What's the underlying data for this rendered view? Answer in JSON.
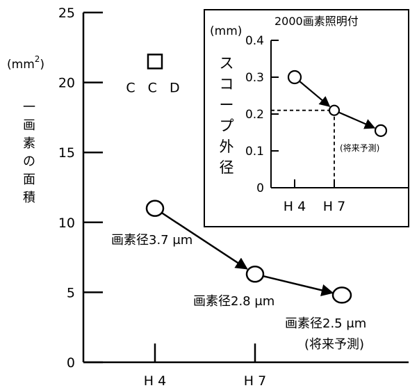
{
  "chart_data": [
    {
      "type": "line",
      "ylabel_unit": "(mm²)",
      "ylabel_unit_base": "(mm",
      "ylabel_unit_sup": "2",
      "ylabel_unit_close": ")",
      "ylabel_vertical": [
        "一",
        "画",
        "素",
        "の",
        "面",
        "積"
      ],
      "yticks": [
        0,
        5,
        10,
        15,
        20,
        25
      ],
      "ylim": [
        0,
        25
      ],
      "categories": [
        "H 4",
        "H 7"
      ],
      "series": [
        {
          "points": [
            {
              "x": "H 4",
              "y": 11.0,
              "label": "画素径3.7 μm"
            },
            {
              "x": "H 7",
              "y": 6.3,
              "label": "画素径2.8 μm"
            },
            {
              "x": "future",
              "y": 4.8,
              "label": "画素径2.5 μm",
              "label2": "(将来予測)"
            }
          ]
        }
      ],
      "markers": [
        {
          "name": "CCD",
          "x": "H 4",
          "y": 21.5,
          "shape": "square"
        }
      ]
    },
    {
      "type": "line",
      "title": "2000画素照明付",
      "ylabel_unit": "(mm)",
      "ylabel_vertical": [
        "ス",
        "コ",
        "ー",
        "プ",
        "外",
        "径"
      ],
      "yticks": [
        "0",
        "0.1",
        "0.2",
        "0.3",
        "0.4"
      ],
      "ylim": [
        0,
        0.4
      ],
      "categories": [
        "H 4",
        "H 7"
      ],
      "series": [
        {
          "points": [
            {
              "x": "H 4",
              "y": 0.3
            },
            {
              "x": "H 7",
              "y": 0.21
            },
            {
              "x": "future",
              "y": 0.155,
              "label": "(将来予測)"
            }
          ]
        }
      ],
      "reference_lines": {
        "y": 0.21,
        "x": "H 7",
        "style": "dashed"
      }
    }
  ]
}
